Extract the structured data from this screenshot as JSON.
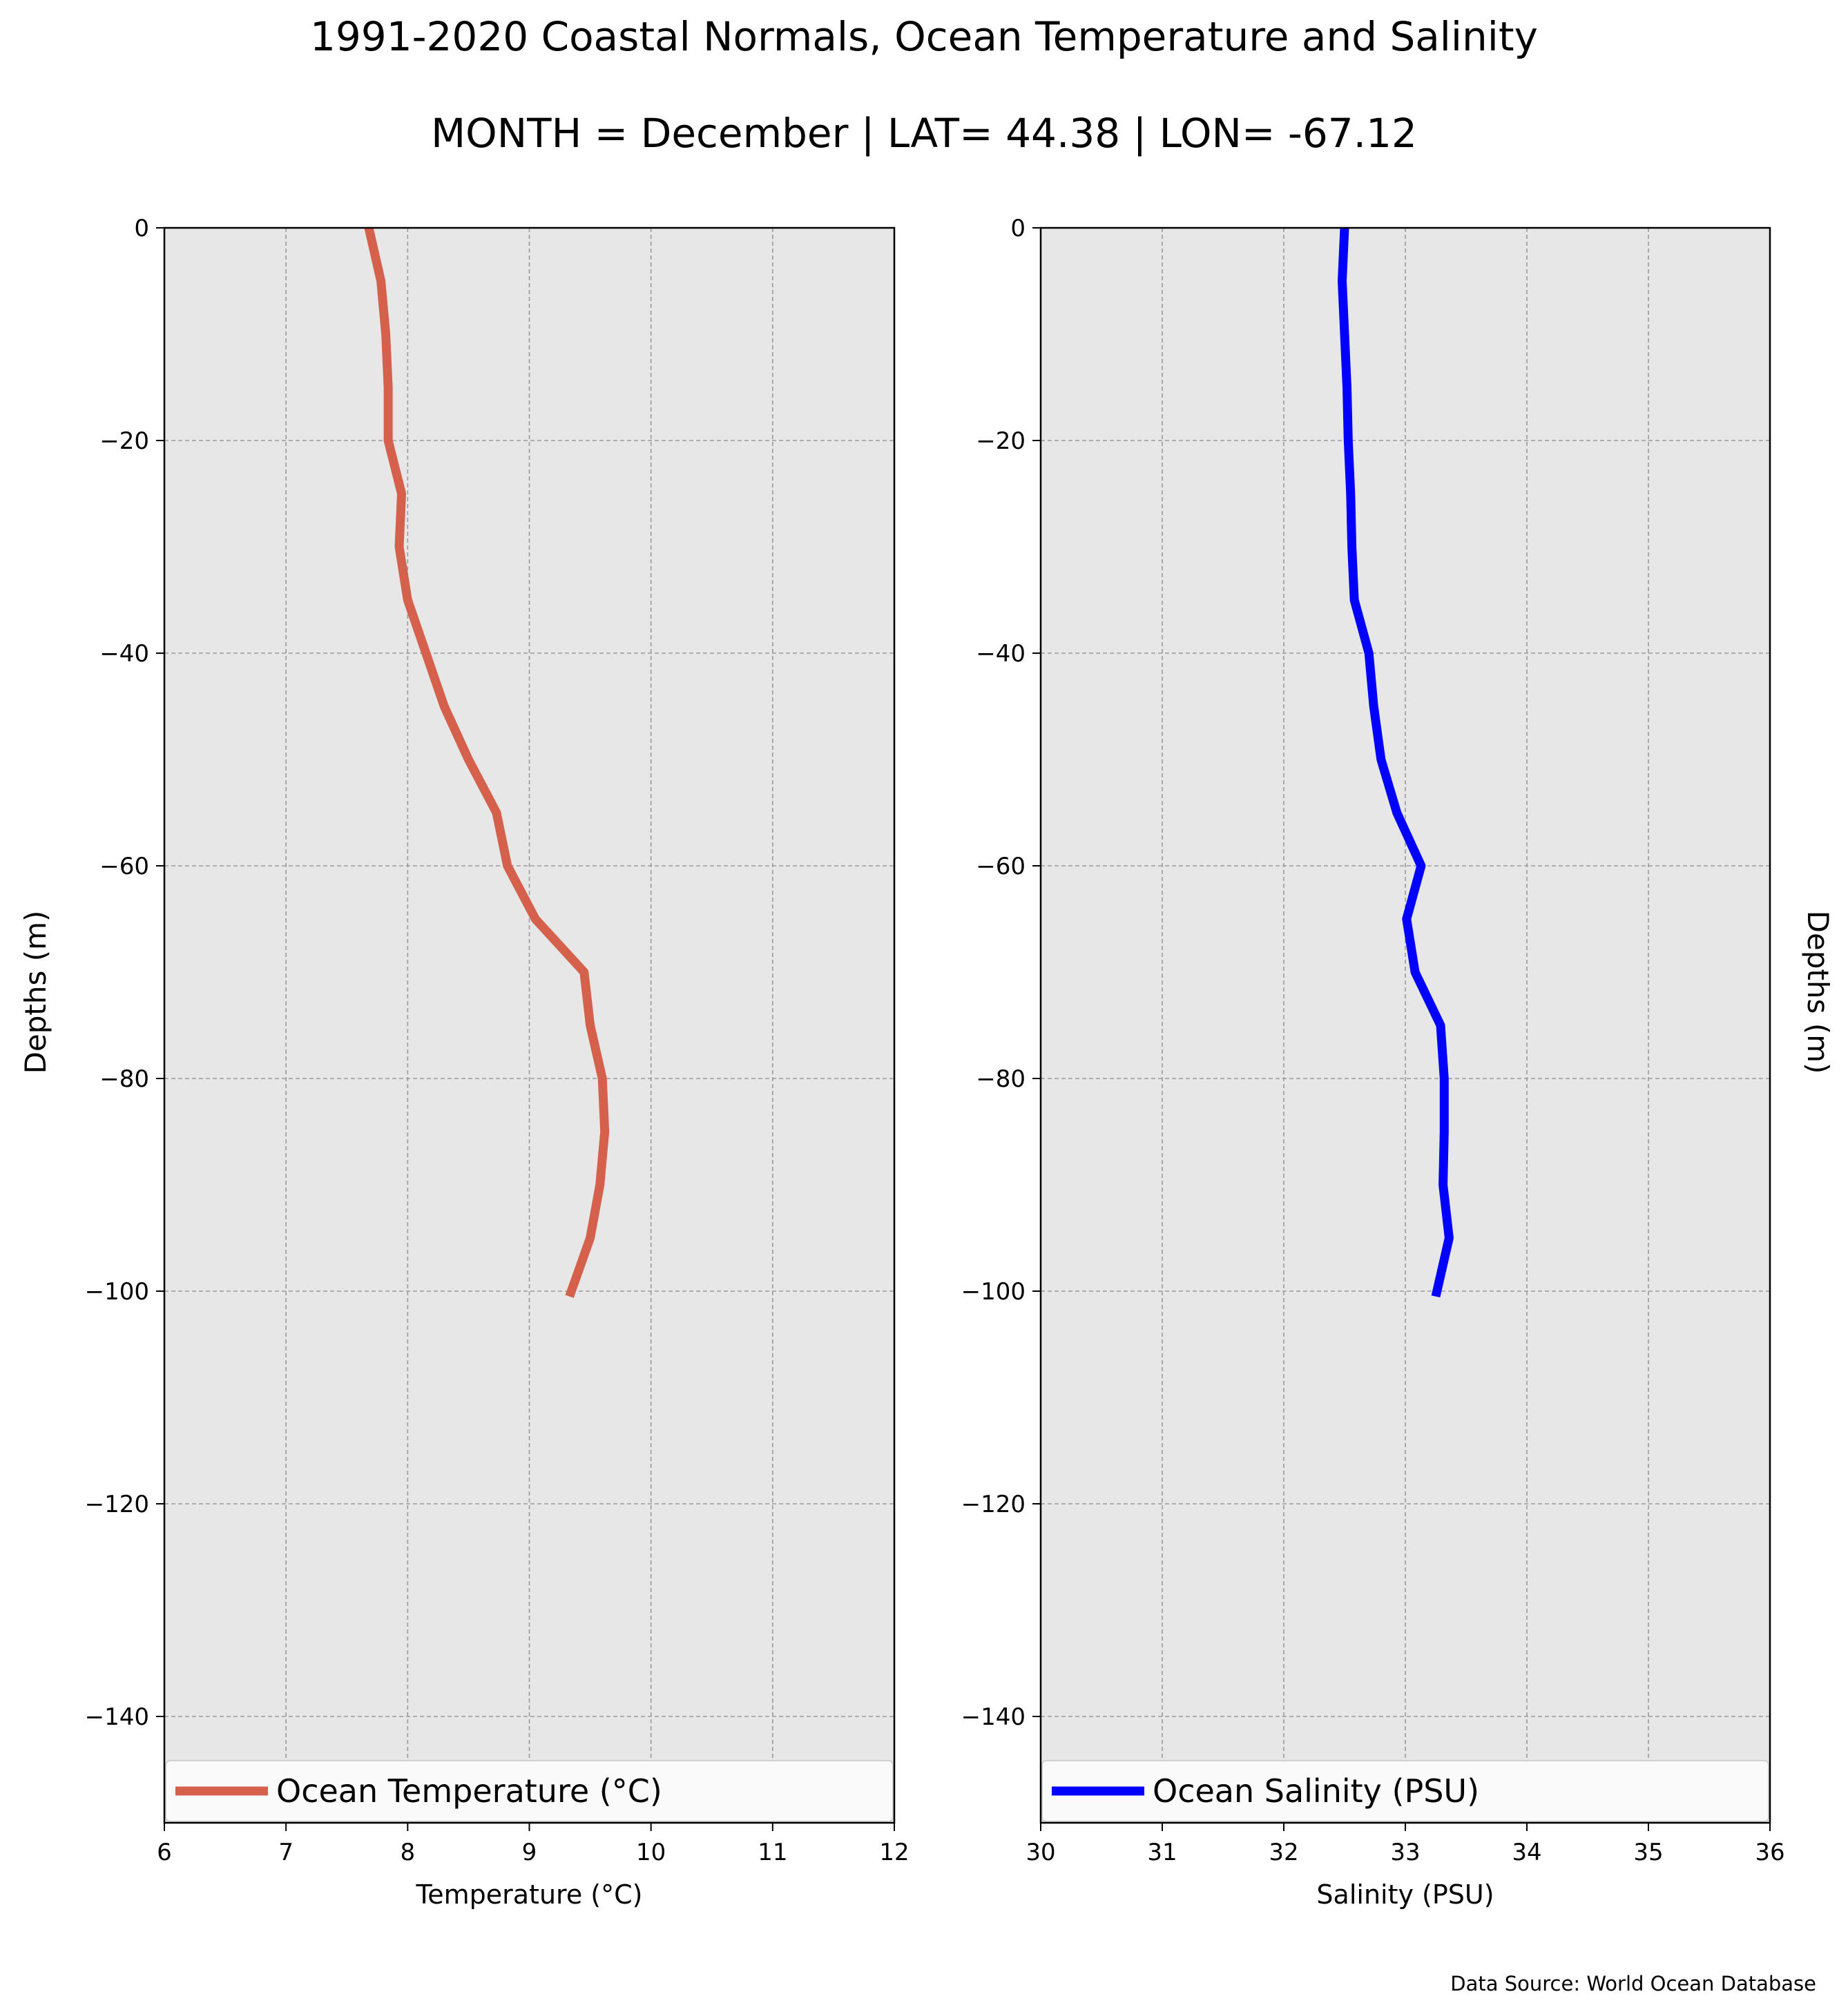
{
  "figure": {
    "title": "1991-2020 Coastal Normals, Ocean Temperature and Salinity",
    "subtitle": "MONTH = December | LAT= 44.38 | LON= -67.12",
    "source_note": "Data Source: World Ocean Database",
    "left_ylabel": "Depths (m)",
    "right_ylabel": "Depths (m)"
  },
  "chart_data": [
    {
      "type": "line",
      "xlabel": "Temperature (°C)",
      "ylabel": "Depths (m)",
      "xlim": [
        6,
        12
      ],
      "ylim": [
        -150,
        0
      ],
      "xticks": [
        6,
        7,
        8,
        9,
        10,
        11,
        12
      ],
      "xtick_labels": [
        "6",
        "7",
        "8",
        "9",
        "10",
        "11",
        "12"
      ],
      "yticks": [
        0,
        -20,
        -40,
        -60,
        -80,
        -100,
        -120,
        -140
      ],
      "ytick_labels": [
        "0",
        "−20",
        "−40",
        "−60",
        "−80",
        "−100",
        "−120",
        "−140"
      ],
      "grid": true,
      "legend": "bottom",
      "color": "#d5604c",
      "background": "#e7e7e7",
      "series": [
        {
          "name": "Ocean Temperature (°C)",
          "x": [
            7.68,
            7.78,
            7.82,
            7.84,
            7.84,
            7.95,
            7.93,
            8.0,
            8.15,
            8.3,
            8.5,
            8.73,
            8.82,
            9.05,
            9.45,
            9.5,
            9.6,
            9.62,
            9.58,
            9.5,
            9.33
          ],
          "y": [
            0,
            -5,
            -10,
            -15,
            -20,
            -25,
            -30,
            -35,
            -40,
            -45,
            -50,
            -55,
            -60,
            -65,
            -70,
            -75,
            -80,
            -85,
            -90,
            -95,
            -100.5
          ]
        }
      ]
    },
    {
      "type": "line",
      "xlabel": "Salinity (PSU)",
      "ylabel": "Depths (m)",
      "xlim": [
        30,
        36
      ],
      "ylim": [
        -150,
        0
      ],
      "xticks": [
        30,
        31,
        32,
        33,
        34,
        35,
        36
      ],
      "xtick_labels": [
        "30",
        "31",
        "32",
        "33",
        "34",
        "35",
        "36"
      ],
      "yticks": [
        0,
        -20,
        -40,
        -60,
        -80,
        -100,
        -120,
        -140
      ],
      "ytick_labels": [
        "0",
        "−20",
        "−40",
        "−60",
        "−80",
        "−100",
        "−120",
        "−140"
      ],
      "grid": true,
      "legend": "bottom",
      "color": "#0000ff",
      "background": "#e7e7e7",
      "series": [
        {
          "name": "Ocean Salinity (PSU)",
          "x": [
            32.5,
            32.48,
            32.5,
            32.52,
            32.53,
            32.55,
            32.56,
            32.58,
            32.7,
            32.74,
            32.8,
            32.93,
            33.13,
            33.01,
            33.08,
            33.29,
            33.32,
            33.32,
            33.31,
            33.36,
            33.25
          ],
          "y": [
            0,
            -5,
            -10,
            -15,
            -20,
            -25,
            -30,
            -35,
            -40,
            -45,
            -50,
            -55,
            -60,
            -65,
            -70,
            -75,
            -80,
            -85,
            -90,
            -95,
            -100.5
          ]
        }
      ]
    }
  ]
}
